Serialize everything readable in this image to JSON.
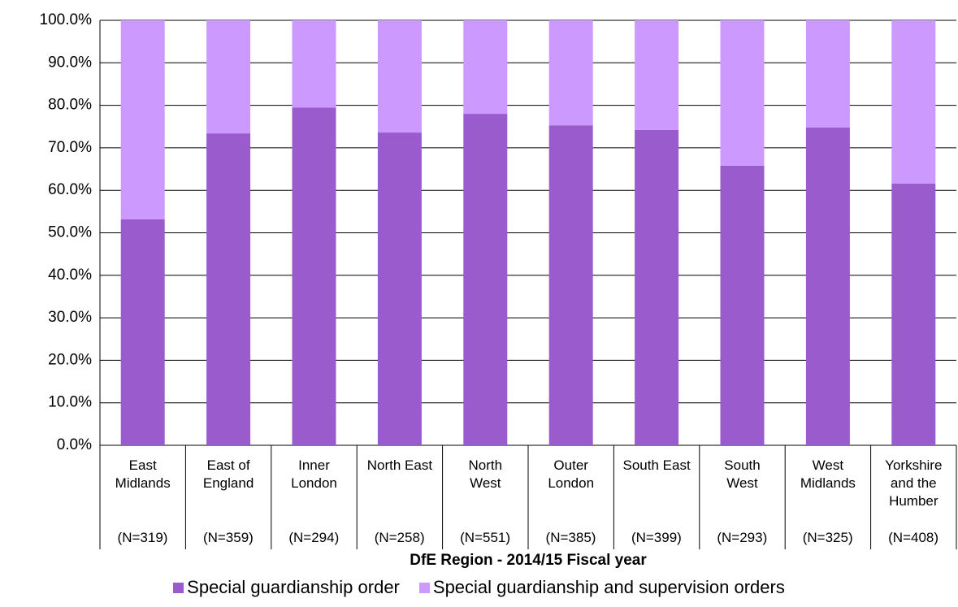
{
  "chart_data": {
    "type": "stacked_bar",
    "x_label": "DfE Region - 2014/15 Fiscal year",
    "categories": [
      "East Midlands",
      "East of England",
      "Inner London",
      "North East",
      "North West",
      "Outer London",
      "South East",
      "South West",
      "West Midlands",
      "Yorkshire and the Humber"
    ],
    "n_labels": [
      "(N=319)",
      "(N=359)",
      "(N=294)",
      "(N=258)",
      "(N=551)",
      "(N=385)",
      "(N=399)",
      "(N=293)",
      "(N=325)",
      "(N=408)"
    ],
    "series": [
      {
        "name": "Special guardianship order",
        "color": "#9a5ccd",
        "values": [
          53.2,
          73.4,
          79.5,
          73.6,
          78.0,
          75.3,
          74.2,
          65.8,
          74.8,
          61.6
        ]
      },
      {
        "name": "Special guardianship and supervision orders",
        "color": "#cc99ff",
        "values": [
          46.8,
          26.6,
          20.5,
          26.4,
          22.0,
          24.7,
          25.8,
          34.2,
          25.2,
          38.4
        ]
      }
    ],
    "ylim": [
      0,
      100
    ],
    "yticks": [
      {
        "value": 0,
        "label": "0.0%"
      },
      {
        "value": 10,
        "label": "10.0%"
      },
      {
        "value": 20,
        "label": "20.0%"
      },
      {
        "value": 30,
        "label": "30.0%"
      },
      {
        "value": 40,
        "label": "40.0%"
      },
      {
        "value": 50,
        "label": "50.0%"
      },
      {
        "value": 60,
        "label": "60.0%"
      },
      {
        "value": 70,
        "label": "70.0%"
      },
      {
        "value": 80,
        "label": "80.0%"
      },
      {
        "value": 90,
        "label": "90.0%"
      },
      {
        "value": 100,
        "label": "100.0%"
      }
    ],
    "grid": true,
    "legend": "bottom"
  }
}
